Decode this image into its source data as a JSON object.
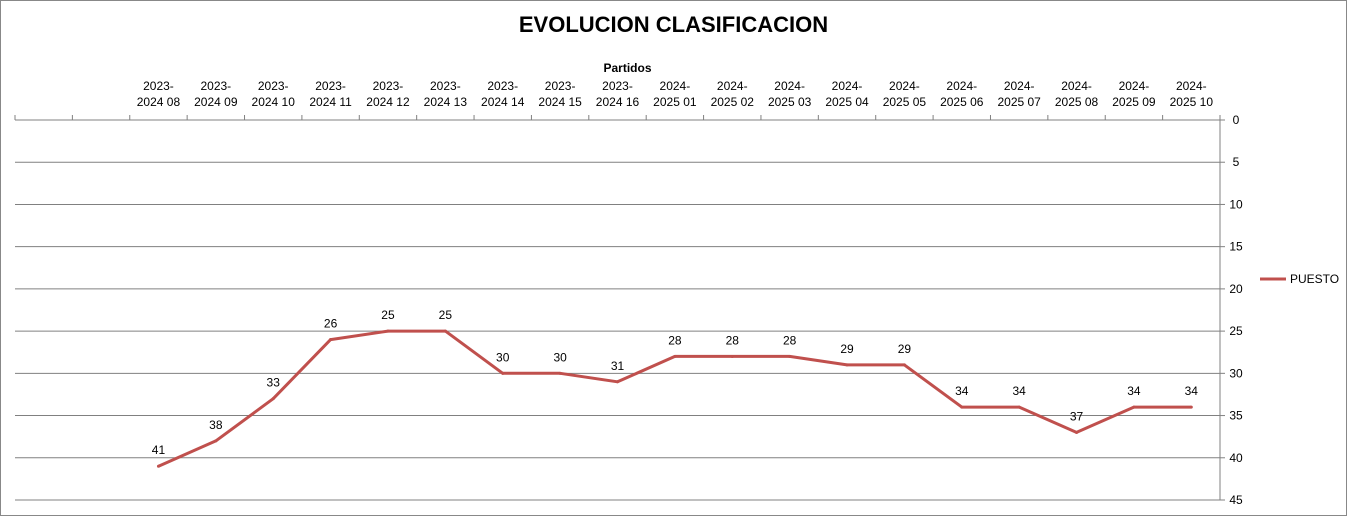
{
  "chart_data": {
    "type": "line",
    "title": "EVOLUCION CLASIFICACION",
    "xlabel": "Partidos",
    "ylabel": "",
    "y_axis_position": "right",
    "y_reversed": true,
    "ylim": [
      0,
      45
    ],
    "y_ticks": [
      0,
      5,
      10,
      15,
      20,
      25,
      30,
      35,
      40,
      45
    ],
    "grid": true,
    "legend_position": "right",
    "categories": [
      "",
      "",
      "2023-2024 08",
      "2023-2024 09",
      "2023-2024 10",
      "2023-2024 11",
      "2023-2024 12",
      "2023-2024 13",
      "2023-2024 14",
      "2023-2024 15",
      "2023-2024 16",
      "2024-2025 01",
      "2024-2025 02",
      "2024-2025 03",
      "2024-2025 04",
      "2024-2025 05",
      "2024-2025 06",
      "2024-2025 07",
      "2024-2025 08",
      "2024-2025 09",
      "2024-2025 10"
    ],
    "category_lines": [
      [
        "",
        ""
      ],
      [
        "",
        ""
      ],
      [
        "2023-",
        "2024 08"
      ],
      [
        "2023-",
        "2024 09"
      ],
      [
        "2023-",
        "2024 10"
      ],
      [
        "2023-",
        "2024 11"
      ],
      [
        "2023-",
        "2024 12"
      ],
      [
        "2023-",
        "2024 13"
      ],
      [
        "2023-",
        "2024 14"
      ],
      [
        "2023-",
        "2024 15"
      ],
      [
        "2023-",
        "2024 16"
      ],
      [
        "2024-",
        "2025 01"
      ],
      [
        "2024-",
        "2025 02"
      ],
      [
        "2024-",
        "2025 03"
      ],
      [
        "2024-",
        "2025 04"
      ],
      [
        "2024-",
        "2025 05"
      ],
      [
        "2024-",
        "2025 06"
      ],
      [
        "2024-",
        "2025 07"
      ],
      [
        "2024-",
        "2025 08"
      ],
      [
        "2024-",
        "2025 09"
      ],
      [
        "2024-",
        "2025 10"
      ]
    ],
    "series": [
      {
        "name": "PUESTO",
        "color": "#c0504d",
        "values": [
          null,
          null,
          41,
          38,
          33,
          26,
          25,
          25,
          30,
          30,
          31,
          28,
          28,
          28,
          29,
          29,
          34,
          34,
          37,
          34,
          34
        ]
      }
    ]
  }
}
